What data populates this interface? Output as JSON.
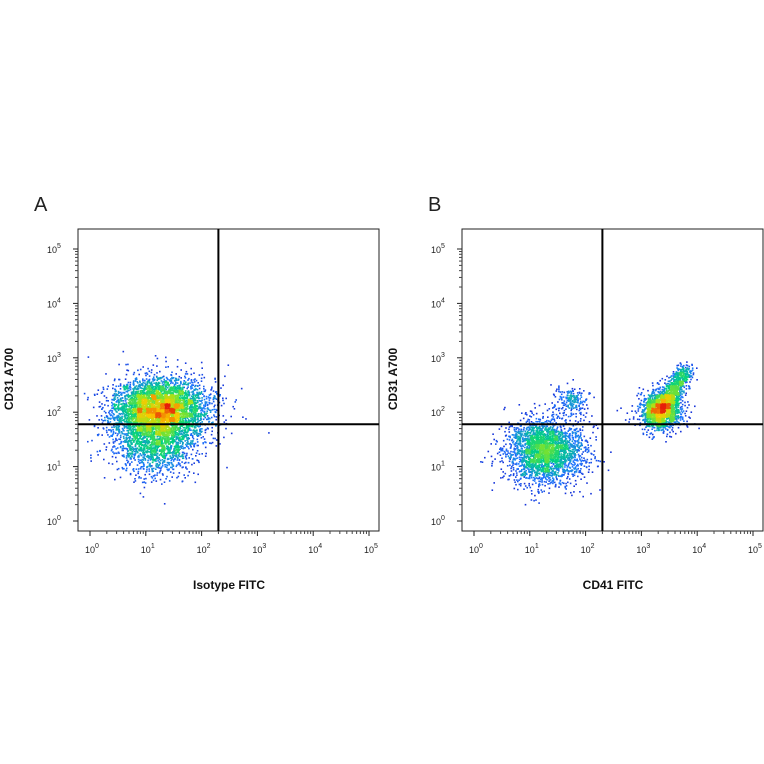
{
  "chart_data": [
    {
      "type": "scatter",
      "panel_label": "A",
      "xlabel": "Isotype FITC",
      "ylabel": "CD31 A700",
      "xscale": "log",
      "yscale": "log",
      "xlim": [
        1,
        100000
      ],
      "ylim": [
        1,
        100000
      ],
      "x_ticks": [
        1,
        10,
        100,
        1000,
        10000,
        100000
      ],
      "y_ticks": [
        1,
        10,
        100,
        1000,
        10000,
        100000
      ],
      "tick_base": "10",
      "tick_exponents": [
        "0",
        "1",
        "2",
        "3",
        "4",
        "5"
      ],
      "quadrant_gate": {
        "x": 200,
        "y": 60
      },
      "grid": false,
      "coloring": "density (blue-green-yellow-red)",
      "populations": [
        {
          "center_x": 18,
          "center_y": 120,
          "spread_log_x": 0.42,
          "spread_log_y": 0.28,
          "count": 4200
        },
        {
          "center_x": 14,
          "center_y": 30,
          "spread_log_x": 0.38,
          "spread_log_y": 0.32,
          "count": 1600
        }
      ]
    },
    {
      "type": "scatter",
      "panel_label": "B",
      "xlabel": "CD41 FITC",
      "ylabel": "CD31 A700",
      "xscale": "log",
      "yscale": "log",
      "xlim": [
        1,
        100000
      ],
      "ylim": [
        1,
        100000
      ],
      "x_ticks": [
        1,
        10,
        100,
        1000,
        10000,
        100000
      ],
      "y_ticks": [
        1,
        10,
        100,
        1000,
        10000,
        100000
      ],
      "tick_base": "10",
      "tick_exponents": [
        "0",
        "1",
        "2",
        "3",
        "4",
        "5"
      ],
      "quadrant_gate": {
        "x": 200,
        "y": 60
      },
      "grid": false,
      "coloring": "density (blue-green-yellow-red)",
      "populations": [
        {
          "center_x": 18,
          "center_y": 20,
          "spread_log_x": 0.35,
          "spread_log_y": 0.3,
          "count": 2600
        },
        {
          "center_x": 2200,
          "center_y": 110,
          "spread_log_x": 0.18,
          "spread_log_y": 0.18,
          "count": 2300,
          "diagonal_tail_to": [
            6000,
            600
          ]
        },
        {
          "center_x": 55,
          "center_y": 170,
          "spread_log_x": 0.15,
          "spread_log_y": 0.12,
          "count": 180
        }
      ]
    }
  ]
}
